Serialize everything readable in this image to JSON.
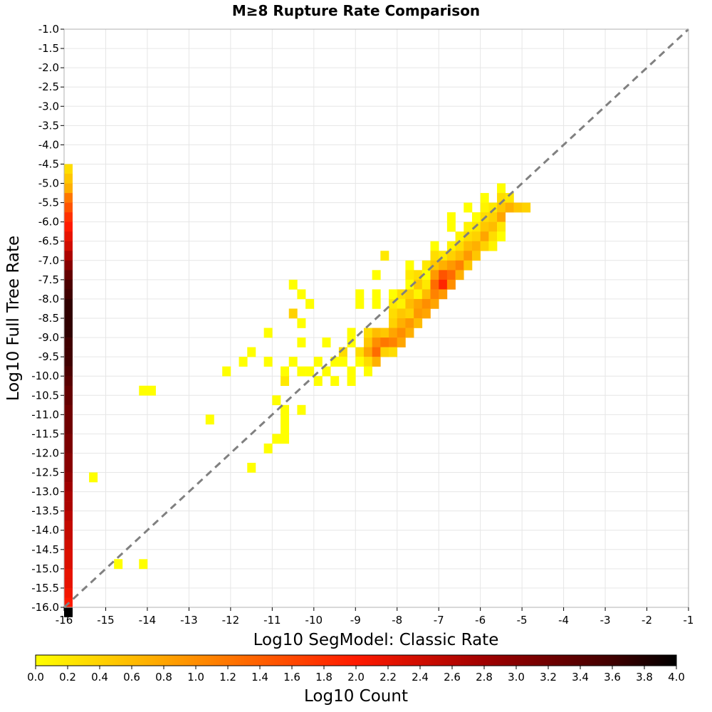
{
  "chart_data": {
    "type": "heatmap",
    "title": "M≥8 Rupture Rate Comparison",
    "xlabel": "Log10 SegModel: Classic Rate",
    "ylabel": "Log10 Full Tree Rate",
    "xlim": [
      -16,
      -1
    ],
    "ylim": [
      -16,
      -1
    ],
    "grid": true,
    "x_ticks": [
      "-16",
      "-15",
      "-14",
      "-13",
      "-12",
      "-11",
      "-10",
      "-9",
      "-8",
      "-7",
      "-6",
      "-5",
      "-4",
      "-3",
      "-2",
      "-1"
    ],
    "y_ticks": [
      "-1.0",
      "-1.5",
      "-2.0",
      "-2.5",
      "-3.0",
      "-3.5",
      "-4.0",
      "-4.5",
      "-5.0",
      "-5.5",
      "-6.0",
      "-6.5",
      "-7.0",
      "-7.5",
      "-8.0",
      "-8.5",
      "-9.0",
      "-9.5",
      "-10.0",
      "-10.5",
      "-11.0",
      "-11.5",
      "-12.0",
      "-12.5",
      "-13.0",
      "-13.5",
      "-14.0",
      "-14.5",
      "-15.0",
      "-15.5",
      "-16.0"
    ],
    "bin_width_x": 0.2,
    "bin_width_y": 0.25,
    "reference_line": {
      "from": [
        -16,
        -16
      ],
      "to": [
        -1,
        -1
      ],
      "style": "dashed",
      "color": "#808080"
    },
    "cells": [
      {
        "x": -16.0,
        "y": -4.5,
        "c": 0.3
      },
      {
        "x": -16.0,
        "y": -4.75,
        "c": 0.5
      },
      {
        "x": -16.0,
        "y": -5.0,
        "c": 0.7
      },
      {
        "x": -16.0,
        "y": -5.25,
        "c": 1.2
      },
      {
        "x": -16.0,
        "y": -5.5,
        "c": 1.5
      },
      {
        "x": -16.0,
        "y": -5.75,
        "c": 1.8
      },
      {
        "x": -16.0,
        "y": -6.0,
        "c": 2.0
      },
      {
        "x": -16.0,
        "y": -6.25,
        "c": 2.2
      },
      {
        "x": -16.0,
        "y": -6.5,
        "c": 2.4
      },
      {
        "x": -16.0,
        "y": -6.75,
        "c": 2.7
      },
      {
        "x": -16.0,
        "y": -7.0,
        "c": 3.0
      },
      {
        "x": -16.0,
        "y": -7.25,
        "c": 3.3
      },
      {
        "x": -16.0,
        "y": -7.5,
        "c": 3.5
      },
      {
        "x": -16.0,
        "y": -7.75,
        "c": 3.6
      },
      {
        "x": -16.0,
        "y": -8.0,
        "c": 3.7
      },
      {
        "x": -16.0,
        "y": -8.25,
        "c": 3.7
      },
      {
        "x": -16.0,
        "y": -8.5,
        "c": 3.7
      },
      {
        "x": -16.0,
        "y": -8.75,
        "c": 3.7
      },
      {
        "x": -16.0,
        "y": -9.0,
        "c": 3.6
      },
      {
        "x": -16.0,
        "y": -9.25,
        "c": 3.6
      },
      {
        "x": -16.0,
        "y": -9.5,
        "c": 3.6
      },
      {
        "x": -16.0,
        "y": -9.75,
        "c": 3.5
      },
      {
        "x": -16.0,
        "y": -10.0,
        "c": 3.4
      },
      {
        "x": -16.0,
        "y": -10.25,
        "c": 3.3
      },
      {
        "x": -16.0,
        "y": -10.5,
        "c": 3.3
      },
      {
        "x": -16.0,
        "y": -10.75,
        "c": 3.2
      },
      {
        "x": -16.0,
        "y": -11.0,
        "c": 3.2
      },
      {
        "x": -16.0,
        "y": -11.25,
        "c": 3.2
      },
      {
        "x": -16.0,
        "y": -11.5,
        "c": 3.1
      },
      {
        "x": -16.0,
        "y": -11.75,
        "c": 3.1
      },
      {
        "x": -16.0,
        "y": -12.0,
        "c": 3.0
      },
      {
        "x": -16.0,
        "y": -12.25,
        "c": 3.0
      },
      {
        "x": -16.0,
        "y": -12.5,
        "c": 2.9
      },
      {
        "x": -16.0,
        "y": -12.75,
        "c": 2.8
      },
      {
        "x": -16.0,
        "y": -13.0,
        "c": 2.7
      },
      {
        "x": -16.0,
        "y": -13.25,
        "c": 2.7
      },
      {
        "x": -16.0,
        "y": -13.5,
        "c": 2.6
      },
      {
        "x": -16.0,
        "y": -13.75,
        "c": 2.5
      },
      {
        "x": -16.0,
        "y": -14.0,
        "c": 2.5
      },
      {
        "x": -16.0,
        "y": -14.25,
        "c": 2.4
      },
      {
        "x": -16.0,
        "y": -14.5,
        "c": 2.3
      },
      {
        "x": -16.0,
        "y": -14.75,
        "c": 2.3
      },
      {
        "x": -16.0,
        "y": -15.0,
        "c": 2.2
      },
      {
        "x": -16.0,
        "y": -15.25,
        "c": 2.2
      },
      {
        "x": -16.0,
        "y": -15.5,
        "c": 2.1
      },
      {
        "x": -16.0,
        "y": -15.75,
        "c": 2.0
      },
      {
        "x": -16.0,
        "y": -16.0,
        "c": 4.0
      },
      {
        "x": -15.4,
        "y": -12.5,
        "c": 0.0
      },
      {
        "x": -14.8,
        "y": -14.75,
        "c": 0.0
      },
      {
        "x": -14.2,
        "y": -14.75,
        "c": 0.0
      },
      {
        "x": -14.2,
        "y": -10.25,
        "c": 0.0
      },
      {
        "x": -14.0,
        "y": -10.25,
        "c": 0.0
      },
      {
        "x": -12.6,
        "y": -11.0,
        "c": 0.0
      },
      {
        "x": -12.2,
        "y": -9.75,
        "c": 0.0
      },
      {
        "x": -11.8,
        "y": -9.5,
        "c": 0.0
      },
      {
        "x": -11.6,
        "y": -9.25,
        "c": 0.0
      },
      {
        "x": -11.6,
        "y": -12.25,
        "c": 0.0
      },
      {
        "x": -11.2,
        "y": -8.75,
        "c": 0.0
      },
      {
        "x": -11.2,
        "y": -9.5,
        "c": 0.0
      },
      {
        "x": -11.2,
        "y": -11.75,
        "c": 0.0
      },
      {
        "x": -11.0,
        "y": -10.5,
        "c": 0.0
      },
      {
        "x": -11.0,
        "y": -11.5,
        "c": 0.0
      },
      {
        "x": -10.8,
        "y": -9.75,
        "c": 0.0
      },
      {
        "x": -10.8,
        "y": -10.0,
        "c": 0.2
      },
      {
        "x": -10.8,
        "y": -10.75,
        "c": 0.0
      },
      {
        "x": -10.8,
        "y": -11.0,
        "c": 0.0
      },
      {
        "x": -10.8,
        "y": -11.25,
        "c": 0.0
      },
      {
        "x": -10.8,
        "y": -11.5,
        "c": 0.0
      },
      {
        "x": -10.6,
        "y": -7.5,
        "c": 0.0
      },
      {
        "x": -10.6,
        "y": -8.25,
        "c": 0.4
      },
      {
        "x": -10.6,
        "y": -9.5,
        "c": 0.0
      },
      {
        "x": -10.4,
        "y": -7.75,
        "c": 0.0
      },
      {
        "x": -10.4,
        "y": -8.5,
        "c": 0.0
      },
      {
        "x": -10.4,
        "y": -9.0,
        "c": 0.0
      },
      {
        "x": -10.4,
        "y": -9.75,
        "c": 0.0
      },
      {
        "x": -10.4,
        "y": -10.75,
        "c": 0.0
      },
      {
        "x": -10.2,
        "y": -8.0,
        "c": 0.0
      },
      {
        "x": -10.2,
        "y": -9.75,
        "c": 0.0
      },
      {
        "x": -10.0,
        "y": -9.5,
        "c": 0.0
      },
      {
        "x": -10.0,
        "y": -10.0,
        "c": 0.0
      },
      {
        "x": -9.8,
        "y": -9.0,
        "c": 0.0
      },
      {
        "x": -9.8,
        "y": -9.75,
        "c": 0.0
      },
      {
        "x": -9.6,
        "y": -9.5,
        "c": 0.0
      },
      {
        "x": -9.6,
        "y": -10.0,
        "c": 0.0
      },
      {
        "x": -9.4,
        "y": -9.25,
        "c": 0.3
      },
      {
        "x": -9.4,
        "y": -9.5,
        "c": 0.0
      },
      {
        "x": -9.2,
        "y": -8.75,
        "c": 0.0
      },
      {
        "x": -9.2,
        "y": -9.0,
        "c": 0.0
      },
      {
        "x": -9.2,
        "y": -9.75,
        "c": 0.0
      },
      {
        "x": -9.2,
        "y": -10.0,
        "c": 0.0
      },
      {
        "x": -9.0,
        "y": -7.75,
        "c": 0.0
      },
      {
        "x": -9.0,
        "y": -8.0,
        "c": 0.0
      },
      {
        "x": -9.0,
        "y": -9.25,
        "c": 0.3
      },
      {
        "x": -9.0,
        "y": -9.5,
        "c": 0.0
      },
      {
        "x": -8.8,
        "y": -8.75,
        "c": 0.3
      },
      {
        "x": -8.8,
        "y": -9.0,
        "c": 0.5
      },
      {
        "x": -8.8,
        "y": -9.25,
        "c": 0.8
      },
      {
        "x": -8.8,
        "y": -9.5,
        "c": 0.3
      },
      {
        "x": -8.8,
        "y": -9.75,
        "c": 0.0
      },
      {
        "x": -8.6,
        "y": -7.25,
        "c": 0.0
      },
      {
        "x": -8.6,
        "y": -7.75,
        "c": 0.0
      },
      {
        "x": -8.6,
        "y": -8.0,
        "c": 0.0
      },
      {
        "x": -8.6,
        "y": -8.75,
        "c": 0.6
      },
      {
        "x": -8.6,
        "y": -9.0,
        "c": 1.0
      },
      {
        "x": -8.6,
        "y": -9.25,
        "c": 1.3
      },
      {
        "x": -8.6,
        "y": -9.5,
        "c": 0.7
      },
      {
        "x": -8.4,
        "y": -6.75,
        "c": 0.2
      },
      {
        "x": -8.4,
        "y": -8.75,
        "c": 0.5
      },
      {
        "x": -8.4,
        "y": -9.0,
        "c": 1.2
      },
      {
        "x": -8.4,
        "y": -9.25,
        "c": 0.4
      },
      {
        "x": -8.2,
        "y": -7.75,
        "c": 0.0
      },
      {
        "x": -8.2,
        "y": -8.0,
        "c": 0.2
      },
      {
        "x": -8.2,
        "y": -8.25,
        "c": 0.3
      },
      {
        "x": -8.2,
        "y": -8.5,
        "c": 0.4
      },
      {
        "x": -8.2,
        "y": -8.75,
        "c": 0.8
      },
      {
        "x": -8.2,
        "y": -9.0,
        "c": 1.1
      },
      {
        "x": -8.2,
        "y": -9.25,
        "c": 0.3
      },
      {
        "x": -8.0,
        "y": -7.75,
        "c": 0.3
      },
      {
        "x": -8.0,
        "y": -8.0,
        "c": 0.1
      },
      {
        "x": -8.0,
        "y": -8.25,
        "c": 0.5
      },
      {
        "x": -8.0,
        "y": -8.5,
        "c": 0.7
      },
      {
        "x": -8.0,
        "y": -8.75,
        "c": 1.0
      },
      {
        "x": -8.0,
        "y": -9.0,
        "c": 0.8
      },
      {
        "x": -7.8,
        "y": -7.0,
        "c": 0.0
      },
      {
        "x": -7.8,
        "y": -7.25,
        "c": 0.2
      },
      {
        "x": -7.8,
        "y": -7.5,
        "c": 0.0
      },
      {
        "x": -7.8,
        "y": -7.75,
        "c": 0.4
      },
      {
        "x": -7.8,
        "y": -8.0,
        "c": 0.6
      },
      {
        "x": -7.8,
        "y": -8.25,
        "c": 0.4
      },
      {
        "x": -7.8,
        "y": -8.5,
        "c": 0.9
      },
      {
        "x": -7.8,
        "y": -8.75,
        "c": 0.7
      },
      {
        "x": -7.6,
        "y": -7.25,
        "c": 0.3
      },
      {
        "x": -7.6,
        "y": -7.5,
        "c": 0.5
      },
      {
        "x": -7.6,
        "y": -7.75,
        "c": 0.1
      },
      {
        "x": -7.6,
        "y": -8.0,
        "c": 0.8
      },
      {
        "x": -7.6,
        "y": -8.25,
        "c": 0.9
      },
      {
        "x": -7.6,
        "y": -8.5,
        "c": 0.6
      },
      {
        "x": -7.4,
        "y": -7.0,
        "c": 0.2
      },
      {
        "x": -7.4,
        "y": -7.25,
        "c": 0.0
      },
      {
        "x": -7.4,
        "y": -7.5,
        "c": 0.2
      },
      {
        "x": -7.4,
        "y": -7.75,
        "c": 0.6
      },
      {
        "x": -7.4,
        "y": -8.0,
        "c": 1.0
      },
      {
        "x": -7.4,
        "y": -8.25,
        "c": 0.8
      },
      {
        "x": -7.2,
        "y": -6.5,
        "c": 0.0
      },
      {
        "x": -7.2,
        "y": -6.75,
        "c": 0.3
      },
      {
        "x": -7.2,
        "y": -7.0,
        "c": 0.5
      },
      {
        "x": -7.2,
        "y": -7.25,
        "c": 0.9
      },
      {
        "x": -7.2,
        "y": -7.5,
        "c": 1.3
      },
      {
        "x": -7.2,
        "y": -7.75,
        "c": 1.1
      },
      {
        "x": -7.2,
        "y": -8.0,
        "c": 0.8
      },
      {
        "x": -7.0,
        "y": -6.75,
        "c": 0.2
      },
      {
        "x": -7.0,
        "y": -7.0,
        "c": 0.7
      },
      {
        "x": -7.0,
        "y": -7.25,
        "c": 1.5
      },
      {
        "x": -7.0,
        "y": -7.5,
        "c": 1.9
      },
      {
        "x": -7.0,
        "y": -7.75,
        "c": 0.9
      },
      {
        "x": -6.8,
        "y": -5.75,
        "c": 0.0
      },
      {
        "x": -6.8,
        "y": -6.0,
        "c": 0.0
      },
      {
        "x": -6.8,
        "y": -6.5,
        "c": 0.1
      },
      {
        "x": -6.8,
        "y": -6.75,
        "c": 0.4
      },
      {
        "x": -6.8,
        "y": -7.0,
        "c": 0.9
      },
      {
        "x": -6.8,
        "y": -7.25,
        "c": 1.3
      },
      {
        "x": -6.8,
        "y": -7.5,
        "c": 1.0
      },
      {
        "x": -6.6,
        "y": -6.25,
        "c": 0.1
      },
      {
        "x": -6.6,
        "y": -6.5,
        "c": 0.3
      },
      {
        "x": -6.6,
        "y": -6.75,
        "c": 0.6
      },
      {
        "x": -6.6,
        "y": -7.0,
        "c": 1.1
      },
      {
        "x": -6.6,
        "y": -7.25,
        "c": 0.7
      },
      {
        "x": -6.4,
        "y": -5.5,
        "c": 0.0
      },
      {
        "x": -6.4,
        "y": -6.0,
        "c": 0.1
      },
      {
        "x": -6.4,
        "y": -6.25,
        "c": 0.3
      },
      {
        "x": -6.4,
        "y": -6.5,
        "c": 0.6
      },
      {
        "x": -6.4,
        "y": -6.75,
        "c": 0.9
      },
      {
        "x": -6.4,
        "y": -7.0,
        "c": 0.5
      },
      {
        "x": -6.2,
        "y": -5.75,
        "c": 0.0
      },
      {
        "x": -6.2,
        "y": -6.0,
        "c": 0.2
      },
      {
        "x": -6.2,
        "y": -6.25,
        "c": 0.4
      },
      {
        "x": -6.2,
        "y": -6.5,
        "c": 0.7
      },
      {
        "x": -6.2,
        "y": -6.75,
        "c": 0.5
      },
      {
        "x": -6.0,
        "y": -5.25,
        "c": 0.0
      },
      {
        "x": -6.0,
        "y": -5.5,
        "c": 0.1
      },
      {
        "x": -6.0,
        "y": -5.75,
        "c": 0.3
      },
      {
        "x": -6.0,
        "y": -6.0,
        "c": 0.5
      },
      {
        "x": -6.0,
        "y": -6.25,
        "c": 0.8
      },
      {
        "x": -6.0,
        "y": -6.5,
        "c": 0.4
      },
      {
        "x": -5.8,
        "y": -5.5,
        "c": 0.2
      },
      {
        "x": -5.8,
        "y": -5.75,
        "c": 0.4
      },
      {
        "x": -5.8,
        "y": -6.0,
        "c": 0.6
      },
      {
        "x": -5.8,
        "y": -6.25,
        "c": 0.3
      },
      {
        "x": -5.8,
        "y": -6.5,
        "c": 0.1
      },
      {
        "x": -5.6,
        "y": -5.0,
        "c": 0.0
      },
      {
        "x": -5.6,
        "y": -5.25,
        "c": 0.3
      },
      {
        "x": -5.6,
        "y": -5.5,
        "c": 0.5
      },
      {
        "x": -5.6,
        "y": -5.75,
        "c": 0.8
      },
      {
        "x": -5.6,
        "y": -6.0,
        "c": 0.2
      },
      {
        "x": -5.6,
        "y": -6.25,
        "c": 0.0
      },
      {
        "x": -5.4,
        "y": -5.25,
        "c": 0.2
      },
      {
        "x": -5.4,
        "y": -5.5,
        "c": 0.7
      },
      {
        "x": -5.2,
        "y": -5.5,
        "c": 0.5
      },
      {
        "x": -5.0,
        "y": -5.5,
        "c": 0.4
      }
    ]
  },
  "colorbar": {
    "label": "Log10 Count",
    "min": 0.0,
    "max": 4.0,
    "ticks": [
      "0.0",
      "0.2",
      "0.4",
      "0.6",
      "0.8",
      "1.0",
      "1.2",
      "1.4",
      "1.6",
      "1.8",
      "2.0",
      "2.2",
      "2.4",
      "2.6",
      "2.8",
      "3.0",
      "3.2",
      "3.4",
      "3.6",
      "3.8",
      "4.0"
    ],
    "stops": [
      {
        "v": 0.0,
        "color": "#ffff00"
      },
      {
        "v": 0.8,
        "color": "#ffa500"
      },
      {
        "v": 2.0,
        "color": "#ff1a00"
      },
      {
        "v": 2.8,
        "color": "#a00000"
      },
      {
        "v": 3.6,
        "color": "#400000"
      },
      {
        "v": 4.0,
        "color": "#000000"
      }
    ]
  }
}
